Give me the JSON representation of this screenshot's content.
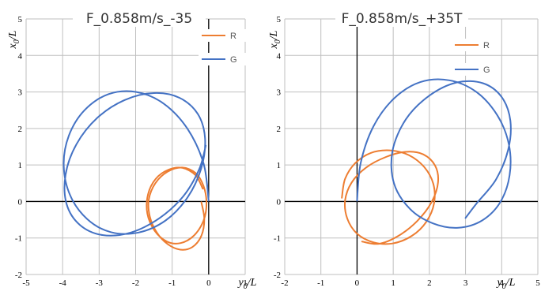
{
  "chart_data": [
    {
      "type": "line",
      "title": "F_0.858m/s_-35",
      "xlabel": "y0/L",
      "ylabel": "x0/L",
      "xlim": [
        -5,
        1
      ],
      "ylim": [
        -2,
        5
      ],
      "grid": true,
      "legend_position": "top-right",
      "x_ticks": [
        "-5",
        "-4",
        "-3",
        "-2",
        "-1",
        "0",
        "1"
      ],
      "y_ticks": [
        "-2",
        "-1",
        "0",
        "1",
        "2",
        "3",
        "4",
        "5"
      ],
      "series": [
        {
          "name": "R",
          "color": "#ED7D31",
          "x": [
            -0.2,
            -0.12,
            -0.2,
            -0.45,
            -0.78,
            -1.12,
            -1.42,
            -1.61,
            -1.64,
            -1.46,
            -1.12,
            -0.72,
            -0.36,
            -0.14,
            -0.06,
            -0.14,
            -0.4,
            -0.77,
            -1.14,
            -1.48,
            -1.68,
            -1.66,
            -1.45,
            -1.1,
            -0.72,
            -0.36,
            -0.16
          ],
          "y": [
            -0.02,
            -0.48,
            -0.94,
            -1.25,
            -1.32,
            -1.17,
            -0.85,
            -0.42,
            0.05,
            0.5,
            0.82,
            0.93,
            0.78,
            0.42,
            -0.05,
            -0.52,
            -0.93,
            -1.14,
            -1.1,
            -0.8,
            -0.33,
            0.2,
            0.62,
            0.87,
            0.92,
            0.72,
            0.35
          ]
        },
        {
          "name": "G",
          "color": "#4472C4",
          "x": [
            0.0,
            -0.14,
            -0.58,
            -1.23,
            -1.98,
            -2.74,
            -3.4,
            -3.83,
            -3.97,
            -3.79,
            -3.33,
            -2.68,
            -1.92,
            -1.18,
            -0.58,
            -0.2,
            -0.1,
            -0.3,
            -0.8,
            -1.5,
            -2.3,
            -3.05,
            -3.62,
            -3.92,
            -3.89,
            -3.53,
            -2.91,
            -2.13,
            -1.34,
            -0.69,
            -0.26,
            -0.08
          ],
          "y": [
            0.02,
            1.04,
            1.99,
            2.68,
            3.0,
            2.94,
            2.5,
            1.8,
            0.98,
            0.16,
            -0.48,
            -0.84,
            -0.85,
            -0.52,
            0.11,
            0.92,
            1.74,
            2.4,
            2.84,
            2.97,
            2.78,
            2.29,
            1.57,
            0.73,
            -0.07,
            -0.64,
            -0.92,
            -0.85,
            -0.45,
            0.15,
            0.88,
            1.53
          ]
        }
      ]
    },
    {
      "type": "line",
      "title": "F_0.858m/s_+35T",
      "xlabel": "y0/L",
      "ylabel": "x0/L",
      "xlim": [
        -2,
        5
      ],
      "ylim": [
        -2,
        5
      ],
      "grid": true,
      "legend_position": "top-right",
      "x_ticks": [
        "-2",
        "-1",
        "0",
        "1",
        "2",
        "3",
        "4",
        "5"
      ],
      "y_ticks": [
        "-2",
        "-1",
        "0",
        "1",
        "2",
        "3",
        "4",
        "5"
      ],
      "series": [
        {
          "name": "R",
          "color": "#ED7D31",
          "x": [
            -0.42,
            -0.33,
            -0.05,
            0.38,
            0.9,
            1.43,
            1.86,
            2.11,
            2.13,
            1.92,
            1.52,
            0.98,
            0.46,
            0.0,
            -0.27,
            -0.33,
            -0.15,
            0.25,
            0.8,
            1.35,
            1.83,
            2.16,
            2.24,
            2.06,
            1.66,
            1.13,
            0.6,
            0.14
          ],
          "y": [
            0.1,
            0.62,
            1.05,
            1.33,
            1.4,
            1.27,
            0.94,
            0.48,
            -0.05,
            -0.55,
            -0.94,
            -1.15,
            -1.12,
            -0.88,
            -0.47,
            0.03,
            0.52,
            0.93,
            1.22,
            1.36,
            1.29,
            0.98,
            0.52,
            -0.02,
            -0.54,
            -0.95,
            -1.16,
            -1.1
          ]
        },
        {
          "name": "G",
          "color": "#4472C4",
          "x": [
            0.0,
            0.1,
            0.45,
            1.02,
            1.75,
            2.55,
            3.3,
            3.88,
            4.2,
            4.22,
            3.96,
            3.46,
            2.8,
            2.1,
            1.46,
            1.02,
            0.98,
            1.35,
            2.0,
            2.76,
            3.48,
            4.0,
            4.24,
            4.18,
            3.84,
            3.3,
            3.0
          ],
          "y": [
            0.02,
            1.05,
            2.05,
            2.82,
            3.27,
            3.32,
            3.0,
            2.36,
            1.56,
            0.72,
            -0.02,
            -0.52,
            -0.72,
            -0.6,
            -0.2,
            0.5,
            1.38,
            2.25,
            2.9,
            3.26,
            3.24,
            2.86,
            2.21,
            1.42,
            0.6,
            -0.06,
            -0.45
          ]
        }
      ]
    }
  ]
}
